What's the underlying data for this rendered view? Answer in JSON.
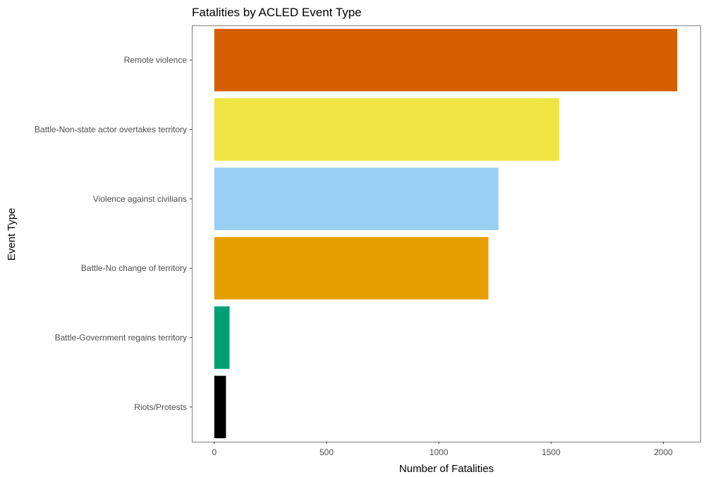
{
  "chart_data": {
    "type": "bar",
    "orientation": "horizontal",
    "title": "Fatalities by ACLED Event Type",
    "xlabel": "Number of Fatalities",
    "ylabel": "Event Type",
    "categories": [
      "Remote violence",
      "Battle-Non-state actor overtakes territory",
      "Violence against civilians",
      "Battle-No change of territory",
      "Battle-Government regains territory",
      "Riots/Protests"
    ],
    "values": [
      2062,
      1536,
      1266,
      1221,
      68,
      52
    ],
    "colors": [
      "#D55E00",
      "#F0E442",
      "#99CFF2",
      "#E69F00",
      "#009E73",
      "#000000"
    ],
    "xlim": [
      -100,
      2165
    ],
    "xticks": [
      0,
      500,
      1000,
      1500,
      2000
    ],
    "xtick_labels": [
      "0",
      "500",
      "1000",
      "1500",
      "2000"
    ],
    "grid": false,
    "legend": "none"
  }
}
